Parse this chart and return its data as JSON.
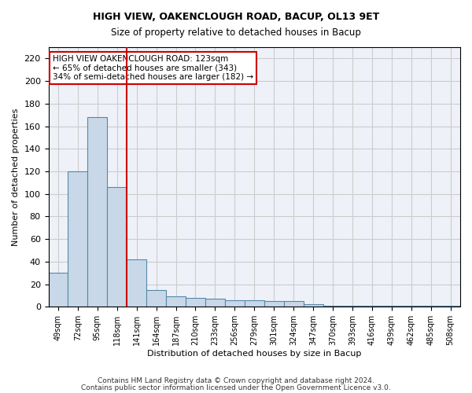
{
  "title1": "HIGH VIEW, OAKENCLOUGH ROAD, BACUP, OL13 9ET",
  "title2": "Size of property relative to detached houses in Bacup",
  "xlabel": "Distribution of detached houses by size in Bacup",
  "ylabel": "Number of detached properties",
  "categories": [
    "49sqm",
    "72sqm",
    "95sqm",
    "118sqm",
    "141sqm",
    "164sqm",
    "187sqm",
    "210sqm",
    "233sqm",
    "256sqm",
    "279sqm",
    "301sqm",
    "324sqm",
    "347sqm",
    "370sqm",
    "393sqm",
    "416sqm",
    "439sqm",
    "462sqm",
    "485sqm",
    "508sqm"
  ],
  "values": [
    30,
    120,
    168,
    106,
    42,
    15,
    9,
    8,
    7,
    6,
    6,
    5,
    5,
    2,
    1,
    1,
    1,
    1,
    1,
    1,
    1
  ],
  "bar_color": "#c8d8e8",
  "bar_edge_color": "#5588aa",
  "grid_color": "#cccccc",
  "bg_color": "#eef2f8",
  "redline_x": 3.5,
  "annotation_line1": "HIGH VIEW OAKENCLOUGH ROAD: 123sqm",
  "annotation_line2": "← 65% of detached houses are smaller (343)",
  "annotation_line3": "34% of semi-detached houses are larger (182) →",
  "annotation_box_color": "#ffffff",
  "annotation_box_edge": "#cc0000",
  "footnote1": "Contains HM Land Registry data © Crown copyright and database right 2024.",
  "footnote2": "Contains public sector information licensed under the Open Government Licence v3.0.",
  "ylim": [
    0,
    230
  ],
  "yticks": [
    0,
    20,
    40,
    60,
    80,
    100,
    120,
    140,
    160,
    180,
    200,
    220
  ]
}
